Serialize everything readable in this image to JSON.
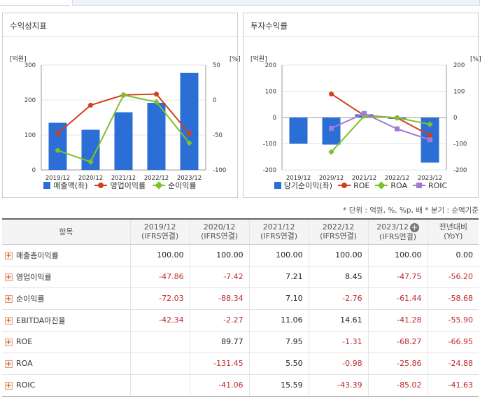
{
  "charts_meta": {
    "left_title": "수익성지표",
    "right_title": "투자수익률"
  },
  "left_axis": {
    "left_unit": "[억원]",
    "right_unit": "[%]",
    "left_ticks": [
      "300",
      "200",
      "100",
      "0"
    ],
    "right_ticks": [
      "50",
      "0",
      "-50",
      "-100"
    ],
    "categories": [
      "2019/12",
      "2020/12",
      "2021/12",
      "2022/12",
      "2023/12"
    ]
  },
  "right_axis": {
    "left_unit": "[억원]",
    "right_unit": "[%]",
    "left_ticks": [
      "200",
      "100",
      "0",
      "-100",
      "-200"
    ],
    "right_ticks": [
      "200",
      "100",
      "0",
      "-100",
      "-200"
    ],
    "categories": [
      "2019/12",
      "2020/12",
      "2021/12",
      "2022/12",
      "2023/12"
    ]
  },
  "left_legend": [
    "매출액(좌)",
    "영업이익률",
    "순이익률"
  ],
  "right_legend": [
    "당기순이익(좌)",
    "ROE",
    "ROA",
    "ROIC"
  ],
  "colors": {
    "bar": "#2b6fd6",
    "op": "#d1411c",
    "net": "#7cc22b",
    "roa": "#7cc22b",
    "roic": "#a07ad8"
  },
  "chart_data": [
    {
      "type": "bar",
      "title": "수익성지표",
      "categories": [
        "2019/12",
        "2020/12",
        "2021/12",
        "2022/12",
        "2023/12"
      ],
      "ylim_left": [
        0,
        300
      ],
      "ylim_right": [
        -100,
        50
      ],
      "series": [
        {
          "name": "매출액(좌)",
          "axis": "left",
          "kind": "bar",
          "values": [
            135,
            115,
            165,
            192,
            278
          ]
        },
        {
          "name": "영업이익률",
          "axis": "right",
          "kind": "line",
          "values": [
            -47.86,
            -7.42,
            7.21,
            8.45,
            -47.75
          ]
        },
        {
          "name": "순이익률",
          "axis": "right",
          "kind": "line",
          "values": [
            -72.03,
            -88.34,
            7.1,
            -2.76,
            -61.44
          ]
        }
      ]
    },
    {
      "type": "bar",
      "title": "투자수익률",
      "categories": [
        "2019/12",
        "2020/12",
        "2021/12",
        "2022/12",
        "2023/12"
      ],
      "ylim_left": [
        -200,
        200
      ],
      "ylim_right": [
        -200,
        200
      ],
      "series": [
        {
          "name": "당기순이익(좌)",
          "axis": "left",
          "kind": "bar",
          "values": [
            -100,
            -103,
            12,
            -5,
            -172
          ]
        },
        {
          "name": "ROE",
          "axis": "right",
          "kind": "line",
          "values": [
            null,
            89.77,
            7.95,
            -1.31,
            -68.27
          ]
        },
        {
          "name": "ROA",
          "axis": "right",
          "kind": "line",
          "values": [
            null,
            -131.45,
            5.5,
            -0.98,
            -25.86
          ]
        },
        {
          "name": "ROIC",
          "axis": "right",
          "kind": "line",
          "values": [
            null,
            -41.06,
            15.59,
            -43.39,
            -85.02
          ]
        }
      ]
    }
  ],
  "note": "* 단위 : 억원, %, %p, 배      * 분기 : 순액기준",
  "table": {
    "headers": [
      [
        "항목",
        ""
      ],
      [
        "2019/12",
        "(IFRS연결)"
      ],
      [
        "2020/12",
        "(IFRS연결)"
      ],
      [
        "2021/12",
        "(IFRS연결)"
      ],
      [
        "2022/12",
        "(IFRS연결)"
      ],
      [
        "2023/12",
        "(IFRS연결)"
      ],
      [
        "전년대비",
        "(YoY)"
      ]
    ],
    "add_col_icon": "+",
    "rows": [
      {
        "label": "매출총이익률",
        "values": [
          "100.00",
          "100.00",
          "100.00",
          "100.00",
          "100.00",
          "0.00"
        ]
      },
      {
        "label": "영업이익률",
        "values": [
          "-47.86",
          "-7.42",
          "7.21",
          "8.45",
          "-47.75",
          "-56.20"
        ]
      },
      {
        "label": "순이익률",
        "values": [
          "-72.03",
          "-88.34",
          "7.10",
          "-2.76",
          "-61.44",
          "-58.68"
        ]
      },
      {
        "label": "EBITDA마진율",
        "values": [
          "-42.34",
          "-2.27",
          "11.06",
          "14.61",
          "-41.28",
          "-55.90"
        ]
      },
      {
        "label": "ROE",
        "values": [
          "",
          "89.77",
          "7.95",
          "-1.31",
          "-68.27",
          "-66.95"
        ]
      },
      {
        "label": "ROA",
        "values": [
          "",
          "-131.45",
          "5.50",
          "-0.98",
          "-25.86",
          "-24.88"
        ]
      },
      {
        "label": "ROIC",
        "values": [
          "",
          "-41.06",
          "15.59",
          "-43.39",
          "-85.02",
          "-41.63"
        ]
      }
    ]
  }
}
